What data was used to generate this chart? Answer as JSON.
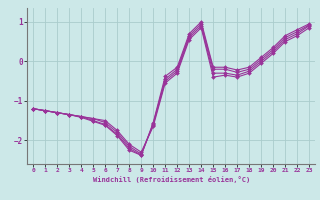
{
  "xlabel": "Windchill (Refroidissement éolien,°C)",
  "background_color": "#cce8e8",
  "grid_color": "#aacccc",
  "line_color": "#993399",
  "xlim": [
    -0.5,
    23.5
  ],
  "ylim": [
    -2.6,
    1.35
  ],
  "yticks": [
    -2,
    -1,
    0,
    1
  ],
  "xticks": [
    0,
    1,
    2,
    3,
    4,
    5,
    6,
    7,
    8,
    9,
    10,
    11,
    12,
    13,
    14,
    15,
    16,
    17,
    18,
    19,
    20,
    21,
    22,
    23
  ],
  "series": [
    {
      "x": [
        0,
        1,
        2,
        3,
        4,
        5,
        6,
        7,
        8,
        9,
        10,
        11,
        12,
        13,
        14,
        15,
        16,
        17,
        18,
        19,
        20,
        21,
        22,
        23
      ],
      "y": [
        -1.2,
        -1.25,
        -1.3,
        -1.35,
        -1.4,
        -1.45,
        -1.5,
        -1.75,
        -2.1,
        -2.3,
        -1.65,
        -0.55,
        -0.3,
        0.55,
        0.85,
        -0.4,
        -0.35,
        -0.4,
        -0.3,
        -0.05,
        0.2,
        0.5,
        0.65,
        0.85
      ]
    },
    {
      "x": [
        0,
        1,
        2,
        3,
        4,
        5,
        6,
        7,
        8,
        9,
        10,
        11,
        12,
        13,
        14,
        15,
        16,
        17,
        18,
        19,
        20,
        21,
        22,
        23
      ],
      "y": [
        -1.2,
        -1.25,
        -1.3,
        -1.35,
        -1.4,
        -1.45,
        -1.55,
        -1.8,
        -2.15,
        -2.35,
        -1.6,
        -0.5,
        -0.25,
        0.6,
        0.9,
        -0.3,
        -0.3,
        -0.35,
        -0.25,
        0.0,
        0.25,
        0.55,
        0.7,
        0.9
      ]
    },
    {
      "x": [
        0,
        1,
        2,
        3,
        4,
        5,
        6,
        7,
        8,
        9,
        10,
        11,
        12,
        13,
        14,
        15,
        16,
        17,
        18,
        19,
        20,
        21,
        22,
        23
      ],
      "y": [
        -1.2,
        -1.25,
        -1.3,
        -1.35,
        -1.4,
        -1.5,
        -1.6,
        -1.85,
        -2.2,
        -2.38,
        -1.58,
        -0.45,
        -0.2,
        0.65,
        0.95,
        -0.2,
        -0.2,
        -0.28,
        -0.2,
        0.05,
        0.3,
        0.6,
        0.75,
        0.92
      ]
    },
    {
      "x": [
        0,
        1,
        2,
        3,
        4,
        5,
        6,
        7,
        8,
        9,
        10,
        11,
        12,
        13,
        14,
        15,
        16,
        17,
        18,
        19,
        20,
        21,
        22,
        23
      ],
      "y": [
        -1.2,
        -1.25,
        -1.3,
        -1.35,
        -1.42,
        -1.52,
        -1.62,
        -1.88,
        -2.25,
        -2.38,
        -1.55,
        -0.38,
        -0.15,
        0.7,
        1.0,
        -0.15,
        -0.15,
        -0.22,
        -0.15,
        0.1,
        0.35,
        0.65,
        0.8,
        0.95
      ]
    }
  ]
}
